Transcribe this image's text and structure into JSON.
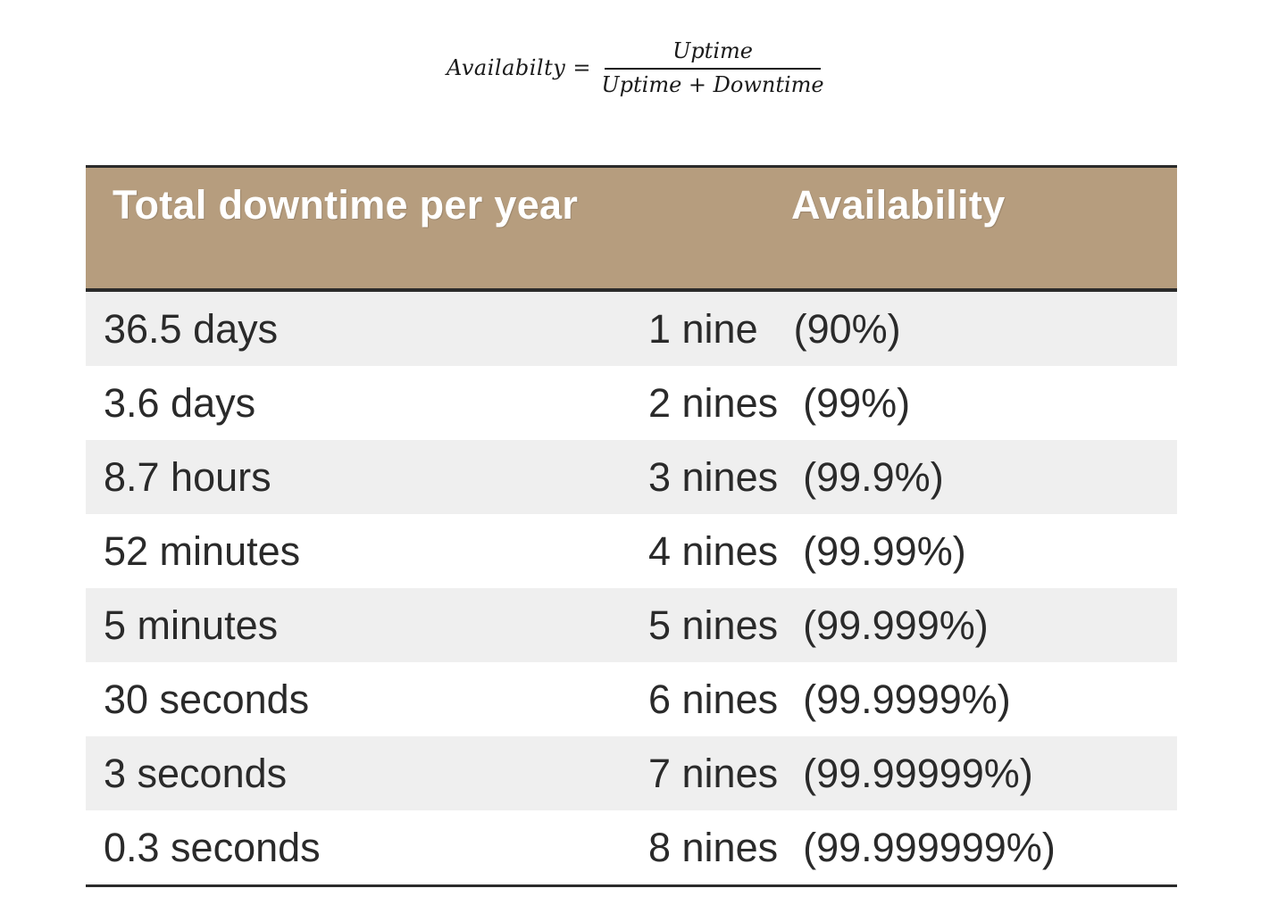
{
  "formula": {
    "lhs": "Availabilty",
    "equals": "=",
    "numerator": "Uptime",
    "denominator": "Uptime + Downtime"
  },
  "table": {
    "headers": {
      "downtime": "Total downtime per year",
      "availability": "Availability"
    },
    "rows": [
      {
        "downtime": "36.5 days",
        "nines": "1 nine",
        "percent": "(90%)"
      },
      {
        "downtime": "3.6 days",
        "nines": "2 nines",
        "percent": "(99%)"
      },
      {
        "downtime": "8.7 hours",
        "nines": "3 nines",
        "percent": "(99.9%)"
      },
      {
        "downtime": "52 minutes",
        "nines": "4 nines",
        "percent": "(99.99%)"
      },
      {
        "downtime": "5 minutes",
        "nines": "5 nines",
        "percent": "(99.999%)"
      },
      {
        "downtime": "30 seconds",
        "nines": "6 nines",
        "percent": "(99.9999%)"
      },
      {
        "downtime": "3 seconds",
        "nines": "7 nines",
        "percent": "(99.99999%)"
      },
      {
        "downtime": "0.3 seconds",
        "nines": "8 nines",
        "percent": "(99.999999%)"
      }
    ],
    "colors": {
      "header_bg": "#b69d7e",
      "header_text": "#ffffff",
      "shaded_row": "#efefef",
      "rule": "#2b2b2b"
    }
  }
}
